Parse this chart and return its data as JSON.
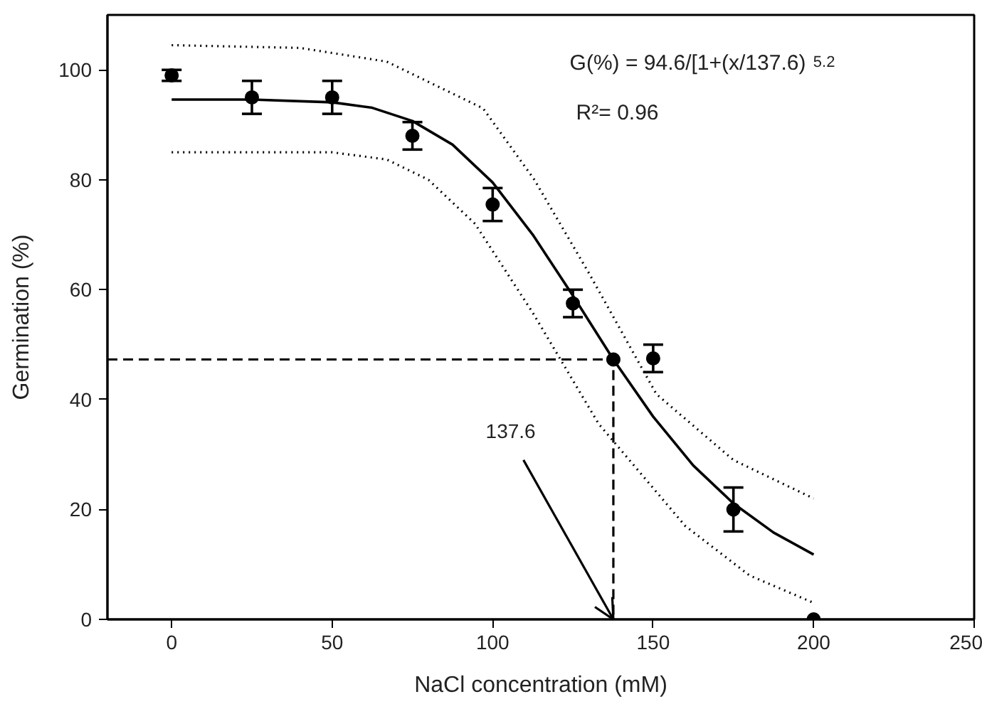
{
  "chart_data": {
    "type": "scatter",
    "xlabel": "NaCl concentration (mM)",
    "ylabel": "Germination (%)",
    "xlim": [
      -20,
      250
    ],
    "ylim": [
      0,
      110
    ],
    "xticks": [
      0,
      50,
      100,
      150,
      200,
      250
    ],
    "yticks": [
      0,
      20,
      40,
      60,
      80,
      100
    ],
    "grid": false,
    "series": [
      {
        "marker": "circle",
        "color": "#000000",
        "x": [
          0,
          25,
          50,
          75,
          100,
          125,
          137.6,
          150,
          175,
          200
        ],
        "values": [
          99,
          95,
          95,
          88,
          75.5,
          57.5,
          47.3,
          47.5,
          20,
          0
        ],
        "errors": [
          1,
          3,
          3,
          2.5,
          3,
          2.5,
          null,
          2.5,
          4,
          null
        ]
      },
      {
        "type": "line",
        "color": "#000000",
        "line_style": "solid",
        "x": [
          0,
          25,
          50,
          62.5,
          75,
          87.5,
          100,
          112.5,
          125,
          137.6,
          150,
          162.5,
          175,
          187.5,
          200
        ],
        "values": [
          94.6,
          94.6,
          94.1,
          93.1,
          90.7,
          86.4,
          79.5,
          70.0,
          58.9,
          47.3,
          36.9,
          28.0,
          21.1,
          15.8,
          11.8
        ]
      },
      {
        "type": "line",
        "color": "#000000",
        "line_style": "dotted",
        "x": [
          0,
          40,
          67,
          97,
          113,
          130,
          151,
          175,
          200
        ],
        "values": [
          104.5,
          104,
          101.5,
          93,
          80,
          63,
          41,
          29,
          22
        ]
      },
      {
        "type": "line",
        "color": "#000000",
        "line_style": "dotted",
        "x": [
          0,
          50,
          67,
          80,
          94.5,
          112.6,
          133,
          160,
          180,
          200
        ],
        "values": [
          85,
          85,
          83.7,
          80,
          72,
          55.7,
          35.6,
          17,
          8,
          3
        ]
      },
      {
        "type": "line",
        "color": "#000000",
        "line_style": "dashed",
        "x": [
          -20,
          137.6,
          137.6
        ],
        "values": [
          47.3,
          47.3,
          0
        ]
      }
    ],
    "annotations": [
      "G(%) = 94.6/[1+(x/137.6) $^{5.2}$",
      "R²=  0.96",
      {
        "text": "137.6",
        "x": 137.6,
        "y": 0
      }
    ]
  }
}
